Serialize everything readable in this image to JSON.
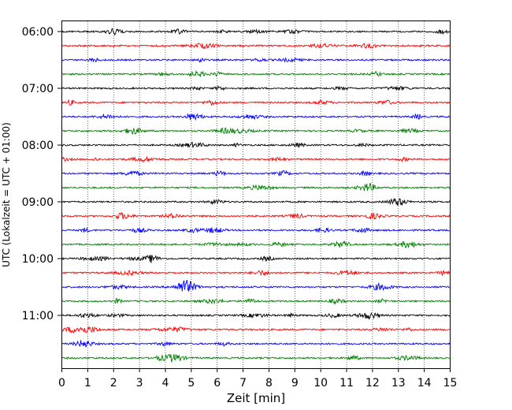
{
  "chart_data": {
    "type": "line",
    "title": "",
    "xlabel": "Zeit  [min]",
    "ylabel": "UTC (Lokalzeit = UTC + 01:00)",
    "xlim": [
      0,
      15
    ],
    "x_ticks": [
      0,
      1,
      2,
      3,
      4,
      5,
      6,
      7,
      8,
      9,
      10,
      11,
      12,
      13,
      14,
      15
    ],
    "y_tick_labels": [
      "06:00",
      "07:00",
      "08:00",
      "09:00",
      "10:00",
      "11:00"
    ],
    "trace_interval_min": 15,
    "start_time": "06:00",
    "trace_count": 24,
    "color_cycle": [
      "#000000",
      "#ff0000",
      "#0000ff",
      "#008000"
    ],
    "grid": "x-dotted",
    "legend": "none"
  }
}
